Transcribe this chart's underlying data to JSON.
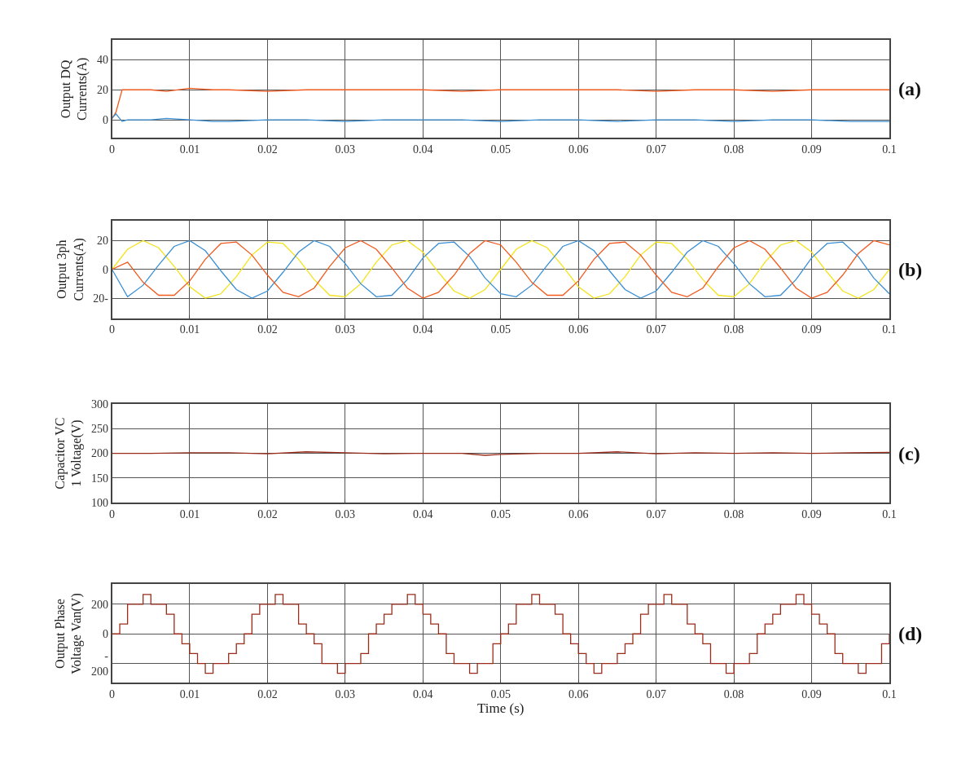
{
  "chart_data": [
    {
      "type": "line",
      "ylabel": "Output DQ\nCurrents(A)",
      "annotations": [
        "(a)"
      ],
      "grid": true,
      "xlim": [
        0,
        0.1
      ],
      "xticks": [
        0,
        0.01,
        0.02,
        0.03,
        0.04,
        0.05,
        0.06,
        0.07,
        0.08,
        0.09,
        0.1
      ],
      "ylim": [
        -12,
        53
      ],
      "yticks": [
        0,
        20,
        40
      ],
      "x": [
        0,
        0.0005,
        0.0013,
        0.002,
        0.005,
        0.007,
        0.01,
        0.013,
        0.015,
        0.02,
        0.025,
        0.03,
        0.035,
        0.04,
        0.045,
        0.05,
        0.055,
        0.06,
        0.065,
        0.07,
        0.075,
        0.08,
        0.085,
        0.09,
        0.095,
        0.1
      ],
      "series": [
        {
          "color": "#f25a1e",
          "values": [
            1,
            5,
            20,
            20,
            20,
            19,
            21,
            20,
            20,
            19,
            20,
            20,
            20,
            20,
            19,
            20,
            20,
            20,
            20,
            19,
            20,
            20,
            19,
            20,
            20,
            20
          ]
        },
        {
          "color": "#3a8fd4",
          "values": [
            1,
            4,
            -1,
            0,
            0,
            1,
            0,
            -1,
            -1,
            0,
            0,
            -1,
            0,
            0,
            0,
            -1,
            0,
            0,
            -1,
            0,
            0,
            -1,
            0,
            0,
            -1,
            -1
          ]
        }
      ]
    },
    {
      "type": "line",
      "ylabel": "Output 3ph\nCurrents(A)",
      "annotations": [
        "(b)"
      ],
      "grid": true,
      "xlim": [
        0,
        0.1
      ],
      "xticks": [
        0,
        0.01,
        0.02,
        0.03,
        0.04,
        0.05,
        0.06,
        0.07,
        0.08,
        0.09,
        0.1
      ],
      "ylim": [
        -34,
        34
      ],
      "yticks": [
        {
          "value": -20,
          "label": "20-"
        },
        0,
        20
      ],
      "x": [
        0,
        0.002,
        0.004,
        0.006,
        0.008,
        0.01,
        0.012,
        0.014,
        0.016,
        0.018,
        0.02,
        0.022,
        0.024,
        0.026,
        0.028,
        0.03,
        0.032,
        0.034,
        0.036,
        0.038,
        0.04,
        0.042,
        0.044,
        0.046,
        0.048,
        0.05,
        0.052,
        0.054,
        0.056,
        0.058,
        0.06,
        0.062,
        0.064,
        0.066,
        0.068,
        0.07,
        0.072,
        0.074,
        0.076,
        0.078,
        0.08,
        0.082,
        0.084,
        0.086,
        0.088,
        0.09,
        0.092,
        0.094,
        0.096,
        0.098,
        0.1
      ],
      "series": [
        {
          "color": "#f5e31a",
          "values": [
            0,
            14,
            20,
            15,
            2,
            -12,
            -20,
            -17,
            -5,
            10,
            19,
            18,
            7,
            -7,
            -18,
            -19,
            -10,
            5,
            17,
            20,
            12,
            -2,
            -15,
            -20,
            -14,
            0,
            14,
            20,
            15,
            2,
            -12,
            -20,
            -17,
            -5,
            10,
            19,
            18,
            7,
            -7,
            -18,
            -19,
            -10,
            5,
            17,
            20,
            12,
            -2,
            -15,
            -20,
            -14,
            0
          ]
        },
        {
          "color": "#3a8fd4",
          "values": [
            0,
            -19,
            -11,
            3,
            16,
            20,
            13,
            -1,
            -14,
            -20,
            -15,
            -2,
            12,
            20,
            16,
            4,
            -10,
            -19,
            -18,
            -7,
            8,
            18,
            19,
            9,
            -6,
            -17,
            -19,
            -11,
            3,
            16,
            20,
            13,
            -1,
            -14,
            -20,
            -15,
            -2,
            12,
            20,
            16,
            4,
            -10,
            -19,
            -18,
            -7,
            8,
            18,
            19,
            9,
            -6,
            -17
          ]
        },
        {
          "color": "#f25a1e",
          "values": [
            0,
            5,
            -9,
            -18,
            -18,
            -8,
            7,
            18,
            19,
            10,
            -4,
            -16,
            -19,
            -13,
            2,
            15,
            20,
            14,
            1,
            -13,
            -20,
            -16,
            -4,
            11,
            20,
            17,
            5,
            -9,
            -18,
            -18,
            -8,
            7,
            18,
            19,
            10,
            -4,
            -16,
            -19,
            -13,
            2,
            15,
            20,
            14,
            1,
            -13,
            -20,
            -16,
            -4,
            11,
            20,
            17
          ]
        }
      ]
    },
    {
      "type": "line",
      "ylabel": "Capacitor VC\n1 Voltage(V)",
      "annotations": [
        "(c)"
      ],
      "grid": true,
      "xlim": [
        0,
        0.1
      ],
      "xticks": [
        0,
        0.01,
        0.02,
        0.03,
        0.04,
        0.05,
        0.06,
        0.07,
        0.08,
        0.09,
        0.1
      ],
      "ylim": [
        100,
        300
      ],
      "yticks": [
        100,
        150,
        200,
        250,
        300
      ],
      "x": [
        0,
        0.005,
        0.01,
        0.015,
        0.02,
        0.025,
        0.03,
        0.035,
        0.04,
        0.045,
        0.048,
        0.05,
        0.055,
        0.06,
        0.065,
        0.07,
        0.075,
        0.08,
        0.085,
        0.09,
        0.095,
        0.1
      ],
      "series": [
        {
          "color": "#9b2b1a",
          "values": [
            200,
            200,
            201,
            201,
            199,
            203,
            201,
            199,
            200,
            200,
            196,
            198,
            200,
            200,
            203,
            199,
            201,
            200,
            201,
            200,
            201,
            202
          ]
        }
      ]
    },
    {
      "type": "step",
      "ylabel": "Output Phase\nVoltage Van(V)",
      "xlabel": "Time (s)",
      "annotations": [
        "(d)"
      ],
      "grid": true,
      "xlim": [
        0,
        0.1
      ],
      "xticks": [
        0,
        0.01,
        0.02,
        0.03,
        0.04,
        0.05,
        0.06,
        0.07,
        0.08,
        0.09,
        0.1
      ],
      "ylim": [
        -332,
        335
      ],
      "yticks": [
        {
          "value": -200,
          "label": "-\n200"
        },
        0,
        200
      ],
      "x": [
        0,
        0.001,
        0.002,
        0.003,
        0.004,
        0.005,
        0.006,
        0.007,
        0.008,
        0.009,
        0.01,
        0.011,
        0.012,
        0.013,
        0.014,
        0.015,
        0.016,
        0.017,
        0.018,
        0.019,
        0.02,
        0.021,
        0.022,
        0.023,
        0.024,
        0.025,
        0.026,
        0.027,
        0.028,
        0.029,
        0.03,
        0.031,
        0.032,
        0.033,
        0.034,
        0.035,
        0.036,
        0.037,
        0.038,
        0.039,
        0.04,
        0.041,
        0.042,
        0.043,
        0.044,
        0.045,
        0.046,
        0.047,
        0.048,
        0.049,
        0.05,
        0.051,
        0.052,
        0.053,
        0.054,
        0.055,
        0.056,
        0.057,
        0.058,
        0.059,
        0.06,
        0.061,
        0.062,
        0.063,
        0.064,
        0.065,
        0.066,
        0.067,
        0.068,
        0.069,
        0.07,
        0.071,
        0.072,
        0.073,
        0.074,
        0.075,
        0.076,
        0.077,
        0.078,
        0.079,
        0.08,
        0.081,
        0.082,
        0.083,
        0.084,
        0.085,
        0.086,
        0.087,
        0.088,
        0.089,
        0.09,
        0.091,
        0.092,
        0.093,
        0.094,
        0.095,
        0.096,
        0.097,
        0.098,
        0.099,
        0.1
      ],
      "series": [
        {
          "color": "#9b2b1a",
          "values": [
            0,
            67,
            200,
            200,
            267,
            200,
            200,
            133,
            0,
            -67,
            -133,
            -200,
            -267,
            -200,
            -200,
            -133,
            -67,
            0,
            133,
            200,
            200,
            267,
            200,
            200,
            67,
            0,
            -67,
            -200,
            -200,
            -267,
            -200,
            -200,
            -133,
            0,
            67,
            133,
            200,
            200,
            267,
            200,
            133,
            67,
            0,
            -133,
            -200,
            -200,
            -267,
            -200,
            -200,
            -67,
            0,
            67,
            200,
            200,
            267,
            200,
            200,
            133,
            0,
            -67,
            -133,
            -200,
            -267,
            -200,
            -200,
            -133,
            -67,
            0,
            133,
            200,
            200,
            267,
            200,
            200,
            67,
            0,
            -67,
            -200,
            -200,
            -267,
            -200,
            -200,
            -133,
            0,
            67,
            133,
            200,
            200,
            267,
            200,
            133,
            67,
            0,
            -133,
            -200,
            -200,
            -267,
            -200,
            -200,
            -67,
            0
          ]
        }
      ]
    }
  ]
}
